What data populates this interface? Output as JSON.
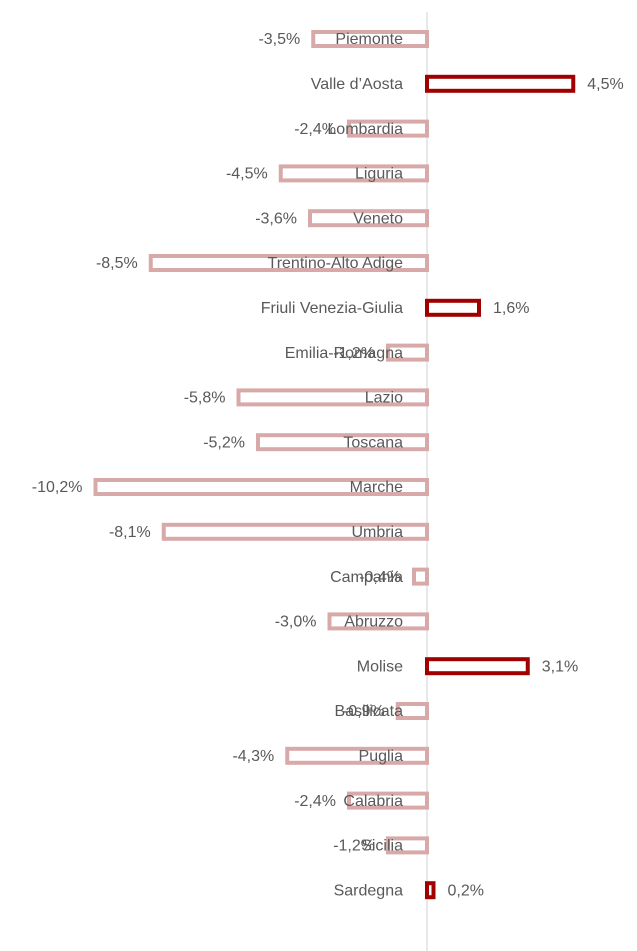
{
  "chart_data": {
    "type": "bar",
    "orientation": "horizontal",
    "categories": [
      "Piemonte",
      "Valle d’Aosta",
      "Lombardia",
      "Liguria",
      "Veneto",
      "Trentino-Alto Adige",
      "Friuli Venezia-Giulia",
      "Emilia-Romagna",
      "Lazio",
      "Toscana",
      "Marche",
      "Umbria",
      "Campania",
      "Abruzzo",
      "Molise",
      "Basilicata",
      "Puglia",
      "Calabria",
      "Sicilia",
      "Sardegna"
    ],
    "values": [
      -3.5,
      4.5,
      -2.4,
      -4.5,
      -3.6,
      -8.5,
      1.6,
      -1.2,
      -5.8,
      -5.2,
      -10.2,
      -8.1,
      -0.4,
      -3.0,
      3.1,
      -0.9,
      -4.3,
      -2.4,
      -1.2,
      0.2
    ],
    "value_labels": [
      "-3,5%",
      "4,5%",
      "-2,4%",
      "-4,5%",
      "-3,6%",
      "-8,5%",
      "1,6%",
      "-1,2%",
      "-5,8%",
      "-5,2%",
      "-10,2%",
      "-8,1%",
      "-0,4%",
      "-3,0%",
      "3,1%",
      "-0,9%",
      "-4,3%",
      "-2,4%",
      "-1,2%",
      "0,2%"
    ],
    "positive_color": "#a00000",
    "negative_color": "#d8a9a9",
    "xlim": [
      -11,
      6
    ]
  }
}
